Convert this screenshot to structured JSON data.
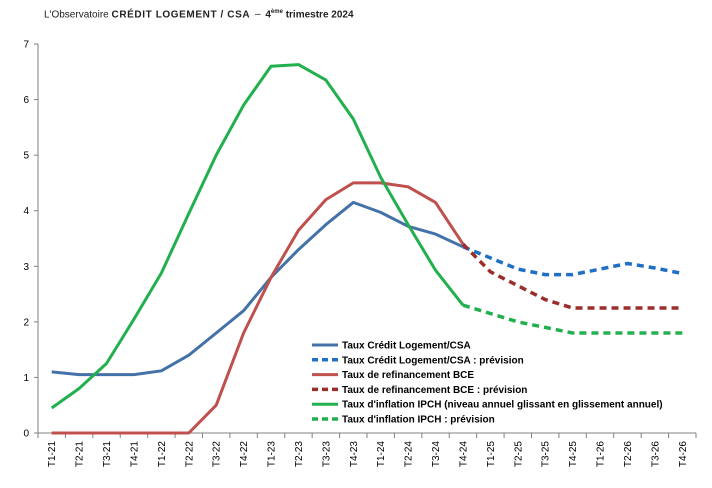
{
  "header": {
    "brand": "L'Observatoire",
    "title": "CRÉDIT LOGEMENT / CSA",
    "separator": "–",
    "quarter_num": "4",
    "quarter_sup": "ème",
    "quarter_rest": "trimestre 2024"
  },
  "chart_data": {
    "type": "line",
    "categories": [
      "T1-21",
      "T2-21",
      "T3-21",
      "T4-21",
      "T1-22",
      "T2-22",
      "T3-22",
      "T4-22",
      "T1-23",
      "T2-23",
      "T3-23",
      "T4-23",
      "T1-24",
      "T2-24",
      "T3-24",
      "T4-24",
      "T1-25",
      "T2-25",
      "T3-25",
      "T4-25",
      "T1-26",
      "T2-26",
      "T3-26",
      "T4-26"
    ],
    "ylim": [
      0,
      7
    ],
    "yticks": [
      0,
      1,
      2,
      3,
      4,
      5,
      6,
      7
    ],
    "grid": false,
    "legend_position": "bottom-right",
    "series": [
      {
        "name": "Taux Crédit Logement/CSA",
        "color": "#4472a8",
        "dashed": false,
        "values": [
          1.1,
          1.05,
          1.05,
          1.05,
          1.12,
          1.4,
          1.8,
          2.2,
          2.8,
          3.3,
          3.75,
          4.15,
          3.97,
          3.72,
          3.58,
          3.35,
          null,
          null,
          null,
          null,
          null,
          null,
          null,
          null
        ]
      },
      {
        "name": "Taux Crédit Logement/CSA : prévision",
        "color": "#1f6fc5",
        "dashed": true,
        "values": [
          null,
          null,
          null,
          null,
          null,
          null,
          null,
          null,
          null,
          null,
          null,
          null,
          null,
          null,
          null,
          3.35,
          3.15,
          2.95,
          2.85,
          2.85,
          2.95,
          3.05,
          2.97,
          2.87
        ]
      },
      {
        "name": "Taux de refinancement BCE",
        "color": "#c0504d",
        "dashed": false,
        "values": [
          0,
          0,
          0,
          0,
          0,
          0,
          0.5,
          1.8,
          2.8,
          3.65,
          4.2,
          4.5,
          4.5,
          4.43,
          4.15,
          3.4,
          null,
          null,
          null,
          null,
          null,
          null,
          null,
          null
        ]
      },
      {
        "name": "Taux de refinancement BCE : prévision",
        "color": "#9b2d2a",
        "dashed": true,
        "values": [
          null,
          null,
          null,
          null,
          null,
          null,
          null,
          null,
          null,
          null,
          null,
          null,
          null,
          null,
          null,
          3.4,
          2.9,
          2.65,
          2.4,
          2.25,
          2.25,
          2.25,
          2.25,
          2.25
        ]
      },
      {
        "name": "Taux d'inflation IPCH (niveau annuel glissant en glissement annuel)",
        "color": "#22b04e",
        "dashed": false,
        "values": [
          0.45,
          0.8,
          1.25,
          2.05,
          2.88,
          3.95,
          5.0,
          5.9,
          6.6,
          6.63,
          6.35,
          5.65,
          4.6,
          3.75,
          2.93,
          2.3,
          null,
          null,
          null,
          null,
          null,
          null,
          null,
          null
        ]
      },
      {
        "name": "Taux d'inflation IPCH : prévision",
        "color": "#22b04e",
        "dashed": true,
        "values": [
          null,
          null,
          null,
          null,
          null,
          null,
          null,
          null,
          null,
          null,
          null,
          null,
          null,
          null,
          null,
          2.3,
          2.15,
          2.0,
          1.9,
          1.8,
          1.8,
          1.8,
          1.8,
          1.8
        ]
      }
    ]
  }
}
